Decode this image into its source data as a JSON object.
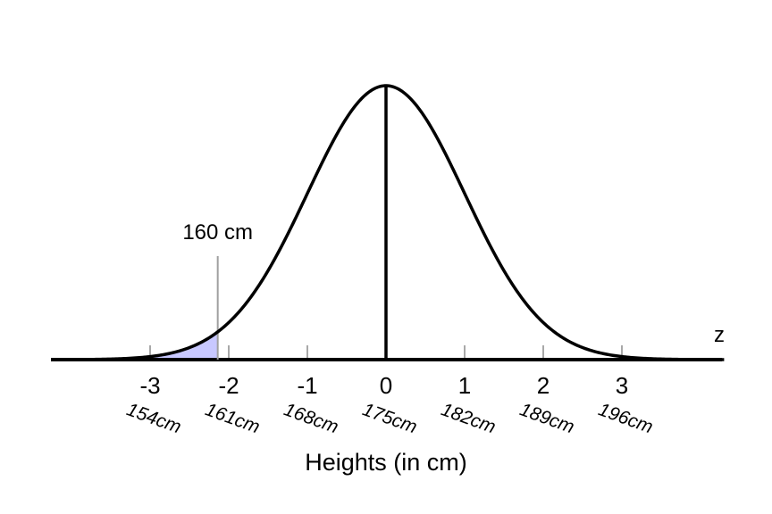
{
  "chart_data": {
    "type": "area",
    "distribution": "normal",
    "z_ticks": [
      -3,
      -2,
      -1,
      0,
      1,
      2,
      3
    ],
    "z_tick_labels": [
      "-3",
      "-2",
      "-1",
      "0",
      "1",
      "2",
      "3"
    ],
    "height_tick_labels": [
      "154cm",
      "161cm",
      "168cm",
      "175cm",
      "182cm",
      "189cm",
      "196cm"
    ],
    "mean_z": 0,
    "xlim": [
      -4.2,
      4.3
    ],
    "shaded_region": {
      "from_z": -4.2,
      "to_z": -2.14,
      "color": "#c8c8ff"
    },
    "marker": {
      "z": -2.14,
      "label": "160 cm"
    },
    "xlabel": "Heights (in cm)",
    "axis_variable_label": "z",
    "grid": false
  }
}
